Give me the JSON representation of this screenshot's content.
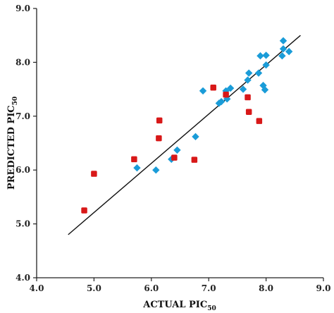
{
  "chart_data": {
    "type": "scatter",
    "title": "",
    "xlabel": "ACTUAL PIC",
    "xlabel_sub": "50",
    "ylabel": "PREDICTED PIC",
    "ylabel_sub": "50",
    "xlim": [
      4.0,
      9.0
    ],
    "ylim": [
      4.0,
      9.0
    ],
    "xticks": [
      "4.0",
      "5.0",
      "6.0",
      "7.0",
      "8.0",
      "9.0"
    ],
    "yticks": [
      "4.0",
      "5.0",
      "6.0",
      "7.0",
      "8.0",
      "9.0"
    ],
    "grid": false,
    "legend": "none",
    "fit_line": {
      "x": [
        4.55,
        8.6
      ],
      "y": [
        4.8,
        8.5
      ],
      "color": "#111111"
    },
    "series": [
      {
        "marker": "diamond",
        "color": "#1a9cd8",
        "x": [
          5.75,
          6.08,
          6.35,
          6.45,
          6.77,
          6.9,
          7.18,
          7.22,
          7.3,
          7.32,
          7.38,
          7.6,
          7.68,
          7.7,
          7.87,
          7.9,
          7.95,
          7.98,
          8.0,
          8.0,
          8.28,
          8.3,
          8.3,
          8.4
        ],
        "y": [
          6.04,
          6.0,
          6.2,
          6.37,
          6.62,
          7.47,
          7.24,
          7.27,
          7.47,
          7.32,
          7.52,
          7.5,
          7.67,
          7.8,
          7.8,
          8.12,
          7.57,
          7.49,
          7.95,
          8.13,
          8.12,
          8.4,
          8.25,
          8.2
        ]
      },
      {
        "marker": "rounded-square",
        "color": "#d81818",
        "x": [
          4.83,
          5.0,
          5.7,
          6.13,
          6.14,
          6.4,
          6.75,
          7.08,
          7.3,
          7.68,
          7.7,
          7.88
        ],
        "y": [
          5.25,
          5.93,
          6.2,
          6.59,
          6.92,
          6.23,
          6.19,
          7.53,
          7.4,
          7.35,
          7.08,
          6.91
        ]
      }
    ]
  }
}
